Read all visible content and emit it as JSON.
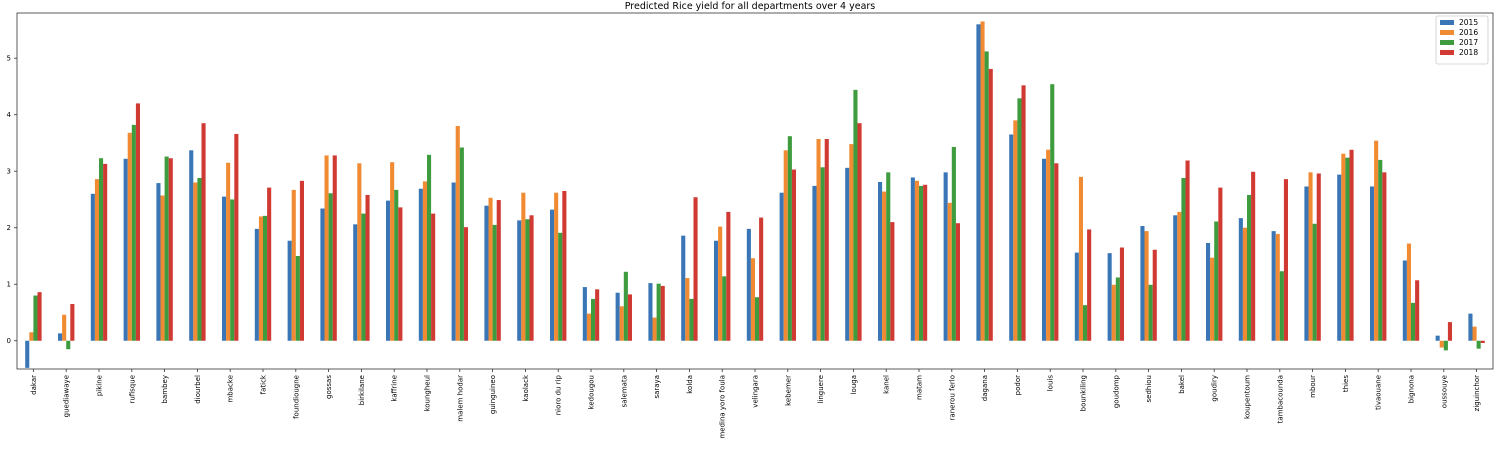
{
  "chart_data": {
    "type": "bar",
    "title": "Predicted Rice yield for all departments over 4 years",
    "xlabel": "",
    "ylabel": "",
    "ylim": [
      -0.5,
      5.8
    ],
    "yticks": [
      0,
      1,
      2,
      3,
      4,
      5
    ],
    "grid": false,
    "legend_position": "top-right",
    "categories": [
      "dakar",
      "guediawaye",
      "pikine",
      "rufisque",
      "bambey",
      "diourbel",
      "mbacke",
      "fatick",
      "foundiougne",
      "gossas",
      "birkilane",
      "kaffrine",
      "koungheul",
      "malem hodar",
      "guinguineo",
      "kaolack",
      "nioro du rip",
      "kedougou",
      "salemata",
      "saraya",
      "kolda",
      "medina yoro foula",
      "velingara",
      "kebemer",
      "linguere",
      "louga",
      "kanel",
      "matam",
      "ranerou ferlo",
      "dagana",
      "podor",
      "louis",
      "bounkiling",
      "goudomp",
      "sedhiou",
      "bakel",
      "goudiry",
      "koupentoum",
      "tambacounda",
      "mbour",
      "thies",
      "tivaouane",
      "bignona",
      "oussouye",
      "ziguinchor"
    ],
    "series": [
      {
        "name": "2015",
        "color": "#3a76b6",
        "values": [
          -0.48,
          0.13,
          2.6,
          3.22,
          2.79,
          3.37,
          2.55,
          1.98,
          1.77,
          2.34,
          2.06,
          2.48,
          2.69,
          2.8,
          2.39,
          2.13,
          2.32,
          0.95,
          0.85,
          1.02,
          1.86,
          1.77,
          1.98,
          2.62,
          2.74,
          3.06,
          2.81,
          2.89,
          2.98,
          5.6,
          3.65,
          3.22,
          1.56,
          1.55,
          2.03,
          2.22,
          1.73,
          2.17,
          1.94,
          2.73,
          2.94,
          2.73,
          1.42,
          0.09,
          0.48
        ]
      },
      {
        "name": "2016",
        "color": "#f08b33",
        "values": [
          0.15,
          0.46,
          2.86,
          3.68,
          2.57,
          2.8,
          3.15,
          2.2,
          2.67,
          3.28,
          3.14,
          3.16,
          2.82,
          3.8,
          2.53,
          2.62,
          2.62,
          0.48,
          0.61,
          0.41,
          1.11,
          2.02,
          1.46,
          3.37,
          3.57,
          3.48,
          2.64,
          2.83,
          2.44,
          5.65,
          3.9,
          3.38,
          2.9,
          0.99,
          1.94,
          2.28,
          1.47,
          2.0,
          1.89,
          2.98,
          3.31,
          3.54,
          1.72,
          -0.12,
          0.25
        ]
      },
      {
        "name": "2017",
        "color": "#3e9c3e",
        "values": [
          0.8,
          -0.15,
          3.23,
          3.82,
          3.26,
          2.88,
          2.5,
          2.21,
          1.5,
          2.61,
          2.25,
          2.67,
          3.29,
          3.42,
          2.05,
          2.15,
          1.91,
          0.74,
          1.22,
          1.01,
          0.74,
          1.14,
          0.77,
          3.62,
          3.07,
          4.44,
          2.98,
          2.74,
          3.43,
          5.12,
          4.29,
          4.54,
          0.63,
          1.12,
          0.99,
          2.88,
          2.11,
          2.58,
          1.23,
          2.07,
          3.24,
          3.2,
          0.67,
          -0.17,
          -0.14
        ]
      },
      {
        "name": "2018",
        "color": "#d03a32",
        "values": [
          0.86,
          0.65,
          3.13,
          4.2,
          3.23,
          3.85,
          3.66,
          2.71,
          2.83,
          3.28,
          2.58,
          2.36,
          2.25,
          2.01,
          2.49,
          2.22,
          2.65,
          0.91,
          0.82,
          0.97,
          2.54,
          2.28,
          2.18,
          3.03,
          3.57,
          3.85,
          2.1,
          2.76,
          2.08,
          4.81,
          4.52,
          3.14,
          1.97,
          1.65,
          1.61,
          3.19,
          2.71,
          2.99,
          2.86,
          2.96,
          3.38,
          2.98,
          1.07,
          0.33,
          -0.04
        ]
      }
    ]
  }
}
